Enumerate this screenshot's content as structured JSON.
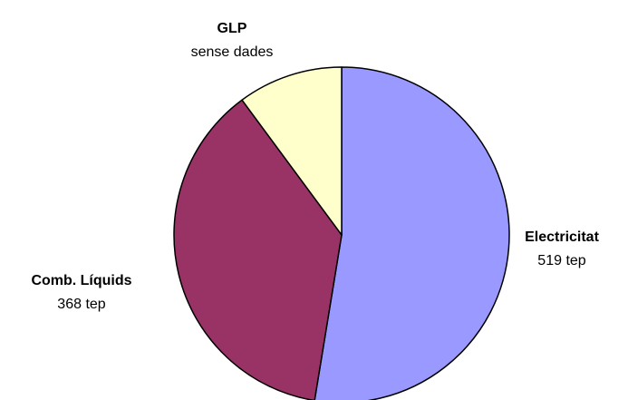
{
  "chart_data": {
    "type": "pie",
    "slices": [
      {
        "name": "Electricitat",
        "value": 519,
        "value_label": "519 tep",
        "color": "#9999FF"
      },
      {
        "name": "Comb. Líquids",
        "value": 368,
        "value_label": "368 tep",
        "color": "#993366"
      },
      {
        "name": "GLP",
        "value": 100,
        "value_label": "sense dades",
        "color": "#FFFFCC"
      }
    ],
    "start_angle_deg": 0,
    "direction": "clockwise",
    "slice_outline": "#000000"
  }
}
